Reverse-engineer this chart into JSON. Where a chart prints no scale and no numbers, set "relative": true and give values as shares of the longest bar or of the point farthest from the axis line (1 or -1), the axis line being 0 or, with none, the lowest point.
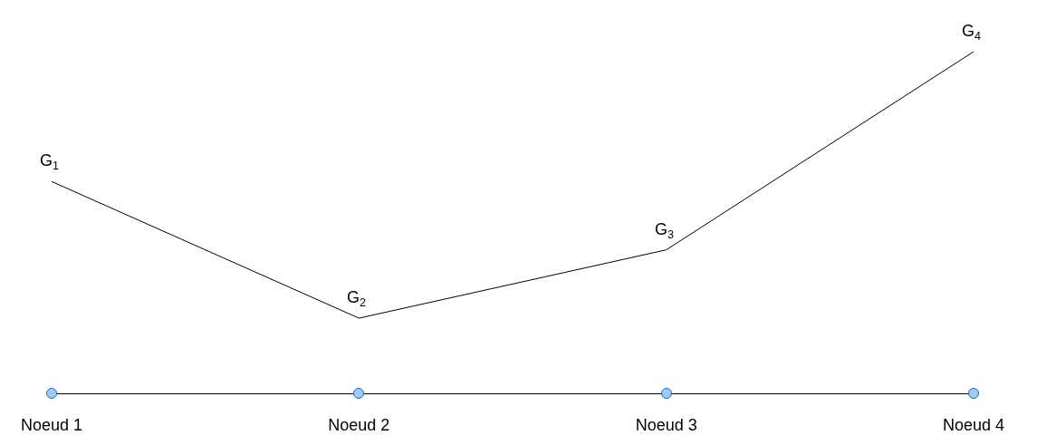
{
  "chart_data": {
    "type": "line",
    "relative": true,
    "categories": [
      "Noeud 1",
      "Noeud 2",
      "Noeud 3",
      "Noeud 4"
    ],
    "series": [
      {
        "color": "#000000",
        "values": [
          0.62,
          0.22,
          0.42,
          1
        ]
      }
    ],
    "annotations": [
      {
        "text": "G$_{1}$",
        "x": "Noeud 1",
        "y": 0.62
      },
      {
        "text": "G$_{2}$",
        "x": "Noeud 2",
        "y": 0.22
      },
      {
        "text": "G$_{3}$",
        "x": "Noeud 3",
        "y": 0.42
      },
      {
        "text": "G$_{4}$",
        "x": "Noeud 4",
        "y": 1
      }
    ],
    "grid": false,
    "marker": "none",
    "line_style": "solid"
  }
}
